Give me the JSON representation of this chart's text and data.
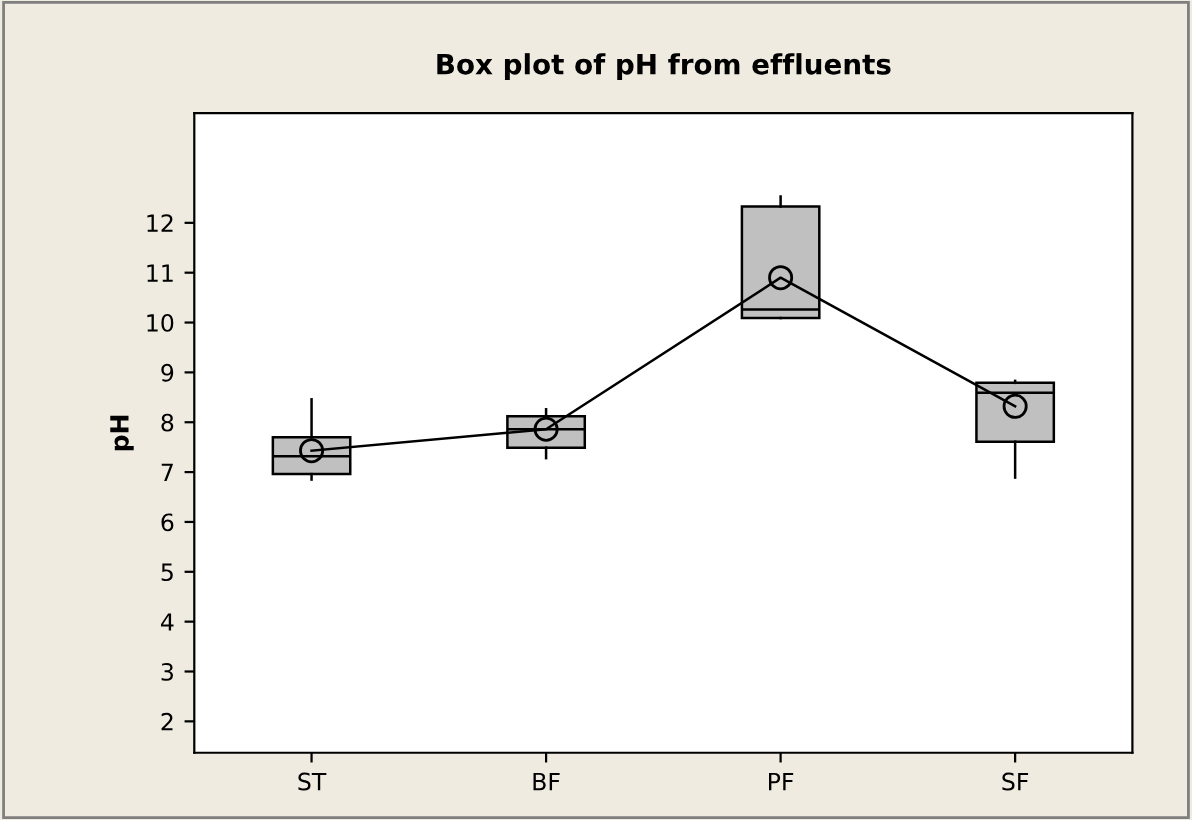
{
  "chart_data": {
    "type": "box",
    "title": "Box plot of pH from effluents",
    "ylabel": "pH",
    "categories": [
      "ST",
      "BF",
      "PF",
      "SF"
    ],
    "boxes": [
      {
        "low": 6.85,
        "q1": 6.96,
        "median": 7.32,
        "q3": 7.7,
        "high": 8.46,
        "mean": 7.43
      },
      {
        "low": 7.28,
        "q1": 7.49,
        "median": 7.86,
        "q3": 8.12,
        "high": 8.26,
        "mean": 7.86
      },
      {
        "low": 10.09,
        "q1": 10.09,
        "median": 10.26,
        "q3": 12.33,
        "high": 12.53,
        "mean": 10.9
      },
      {
        "low": 6.89,
        "q1": 7.61,
        "median": 8.59,
        "q3": 8.79,
        "high": 8.83,
        "mean": 8.32
      }
    ],
    "color": "#c0c0c0",
    "series": [
      {
        "type": "line",
        "color": "#000000",
        "values": [
          7.43,
          7.86,
          10.9,
          8.32
        ]
      }
    ],
    "ylim": [
      1.37,
      14.2
    ],
    "yticks": [
      2,
      3,
      4,
      5,
      6,
      7,
      8,
      9,
      10,
      11,
      12
    ],
    "grid": false,
    "legend": false
  }
}
